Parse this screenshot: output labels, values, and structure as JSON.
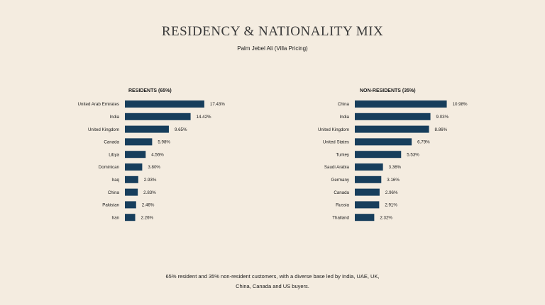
{
  "title": "RESIDENCY & NATIONALITY MIX",
  "subtitle": "Palm Jebel Ali (Villa Pricing)",
  "colors": {
    "background": "#f4ece0",
    "bar": "#173e5c"
  },
  "chart_data": [
    {
      "type": "bar",
      "orientation": "horizontal",
      "title": "RESIDENTS (65%)",
      "categories": [
        "United Arab Emirates",
        "India",
        "United Kingdom",
        "Canada",
        "Libya",
        "Dominican",
        "Iraq",
        "China",
        "Pakistan",
        "Iran"
      ],
      "values": [
        17.43,
        14.42,
        9.65,
        5.98,
        4.56,
        3.8,
        2.93,
        2.83,
        2.46,
        2.26
      ],
      "labels": [
        "17.43%",
        "14.42%",
        "9.65%",
        "5.98%",
        "4.56%",
        "3.80%",
        "2.93%",
        "2.83%",
        "2.46%",
        "2.26%"
      ]
    },
    {
      "type": "bar",
      "orientation": "horizontal",
      "title": "NON-RESIDENTS (35%)",
      "categories": [
        "China",
        "India",
        "United Kingdom",
        "United States",
        "Turkey",
        "Saudi Arabia",
        "Germany",
        "Canada",
        "Russia",
        "Thailand"
      ],
      "values": [
        10.98,
        9.03,
        8.86,
        6.79,
        5.53,
        3.36,
        3.16,
        2.96,
        2.91,
        2.32
      ],
      "labels": [
        "10.98%",
        "9.03%",
        "8.86%",
        "6.79%",
        "5.53%",
        "3.36%",
        "3.16%",
        "2.96%",
        "2.91%",
        "2.32%"
      ]
    }
  ],
  "footer": {
    "line1": "65% resident and 35% non-resident customers, with a diverse base led by India, UAE, UK,",
    "line2": "China, Canada and US buyers."
  }
}
